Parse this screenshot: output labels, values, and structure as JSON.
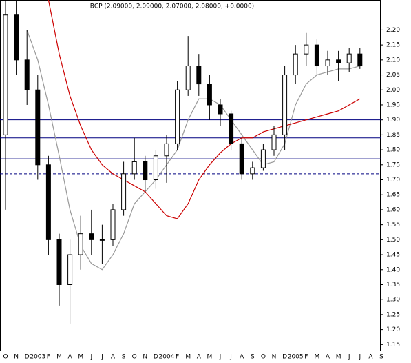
{
  "chart_data": {
    "type": "candlestick",
    "title": "BCP (2.09000, 2.09000, 2.07000, 2.08000, +0.0000)",
    "categories": [
      "O",
      "N",
      "D",
      "2003",
      "F",
      "M",
      "A",
      "M",
      "J",
      "J",
      "A",
      "S",
      "O",
      "N",
      "D",
      "2004",
      "F",
      "M",
      "A",
      "M",
      "J",
      "J",
      "A",
      "S",
      "O",
      "N",
      "D",
      "2005",
      "F",
      "M",
      "A",
      "M",
      "J",
      "J",
      "A",
      "S"
    ],
    "open": [
      1.85,
      2.25,
      2.1,
      2.0,
      1.75,
      1.5,
      1.35,
      1.45,
      1.52,
      1.5,
      1.5,
      1.6,
      1.72,
      1.76,
      1.7,
      1.78,
      1.82,
      2.0,
      2.08,
      2.02,
      1.95,
      1.92,
      1.82,
      1.72,
      1.74,
      1.8,
      1.85,
      2.05,
      2.12,
      2.15,
      2.08,
      2.1,
      2.09,
      2.12,
      null,
      null
    ],
    "high": [
      2.3,
      2.3,
      2.2,
      2.05,
      1.78,
      1.52,
      1.5,
      1.58,
      1.6,
      1.55,
      1.62,
      1.76,
      1.84,
      1.78,
      1.8,
      1.85,
      2.03,
      2.18,
      2.12,
      2.05,
      1.97,
      1.93,
      1.84,
      1.76,
      1.82,
      1.88,
      2.08,
      2.15,
      2.19,
      2.17,
      2.13,
      2.13,
      2.14,
      2.14,
      null,
      null
    ],
    "low": [
      1.6,
      2.05,
      1.95,
      1.7,
      1.45,
      1.28,
      1.22,
      1.4,
      1.45,
      1.42,
      1.48,
      1.58,
      1.7,
      1.66,
      1.67,
      1.69,
      1.8,
      1.98,
      1.98,
      1.9,
      1.88,
      1.8,
      1.7,
      1.7,
      1.73,
      1.78,
      1.8,
      2.02,
      2.08,
      2.05,
      2.05,
      2.03,
      2.06,
      2.07,
      null,
      null
    ],
    "close": [
      2.25,
      2.1,
      2.0,
      1.75,
      1.5,
      1.35,
      1.45,
      1.52,
      1.5,
      1.5,
      1.6,
      1.72,
      1.76,
      1.7,
      1.78,
      1.82,
      2.0,
      2.08,
      2.02,
      1.95,
      1.92,
      1.82,
      1.72,
      1.74,
      1.8,
      1.85,
      2.05,
      2.12,
      2.15,
      2.08,
      2.1,
      2.09,
      2.12,
      2.08,
      null,
      null
    ],
    "up_color": "#ffffff",
    "down_color": "#000000",
    "overlays": [
      {
        "color": "#999999",
        "values": [
          null,
          null,
          2.2,
          2.1,
          1.95,
          1.78,
          1.6,
          1.48,
          1.42,
          1.4,
          1.45,
          1.52,
          1.62,
          1.66,
          1.7,
          1.75,
          1.8,
          1.9,
          1.97,
          1.97,
          1.95,
          1.9,
          1.85,
          1.8,
          1.75,
          1.76,
          1.82,
          1.95,
          2.02,
          2.05,
          2.06,
          2.07,
          2.07,
          2.08,
          null,
          null
        ]
      },
      {
        "color": "#cc0000",
        "values": [
          null,
          null,
          null,
          null,
          2.3,
          2.12,
          1.98,
          1.88,
          1.8,
          1.75,
          1.72,
          1.7,
          1.68,
          1.66,
          1.62,
          1.58,
          1.57,
          1.62,
          1.7,
          1.75,
          1.79,
          1.82,
          1.84,
          1.84,
          1.86,
          1.87,
          1.88,
          1.89,
          1.9,
          1.91,
          1.92,
          1.93,
          1.95,
          1.97,
          null,
          null
        ]
      }
    ],
    "hlines": [
      {
        "value": 1.9,
        "color": "#000080",
        "dashed": false
      },
      {
        "value": 1.84,
        "color": "#000080",
        "dashed": false
      },
      {
        "value": 1.77,
        "color": "#000080",
        "dashed": false
      },
      {
        "value": 1.72,
        "color": "#000080",
        "dashed": true
      }
    ],
    "ylim": [
      1.13,
      2.3
    ],
    "yticks": [
      {
        "value": 1.15,
        "label": "1.15"
      },
      {
        "value": 1.2,
        "label": "1.20"
      },
      {
        "value": 1.25,
        "label": "1.25"
      },
      {
        "value": 1.3,
        "label": "1.30"
      },
      {
        "value": 1.35,
        "label": "1.35"
      },
      {
        "value": 1.4,
        "label": "1.40"
      },
      {
        "value": 1.45,
        "label": "1.45"
      },
      {
        "value": 1.5,
        "label": "1.50"
      },
      {
        "value": 1.55,
        "label": "1.55"
      },
      {
        "value": 1.6,
        "label": "1.60"
      },
      {
        "value": 1.65,
        "label": "1.65"
      },
      {
        "value": 1.7,
        "label": "1.70"
      },
      {
        "value": 1.75,
        "label": "1.75"
      },
      {
        "value": 1.8,
        "label": "1.80"
      },
      {
        "value": 1.85,
        "label": "1.85"
      },
      {
        "value": 1.9,
        "label": "1.90"
      },
      {
        "value": 1.95,
        "label": "1.95"
      },
      {
        "value": 2.0,
        "label": "2.00"
      },
      {
        "value": 2.05,
        "label": "2.05"
      },
      {
        "value": 2.1,
        "label": "2.10"
      },
      {
        "value": 2.15,
        "label": "2.15"
      },
      {
        "value": 2.2,
        "label": "2.20"
      }
    ]
  }
}
